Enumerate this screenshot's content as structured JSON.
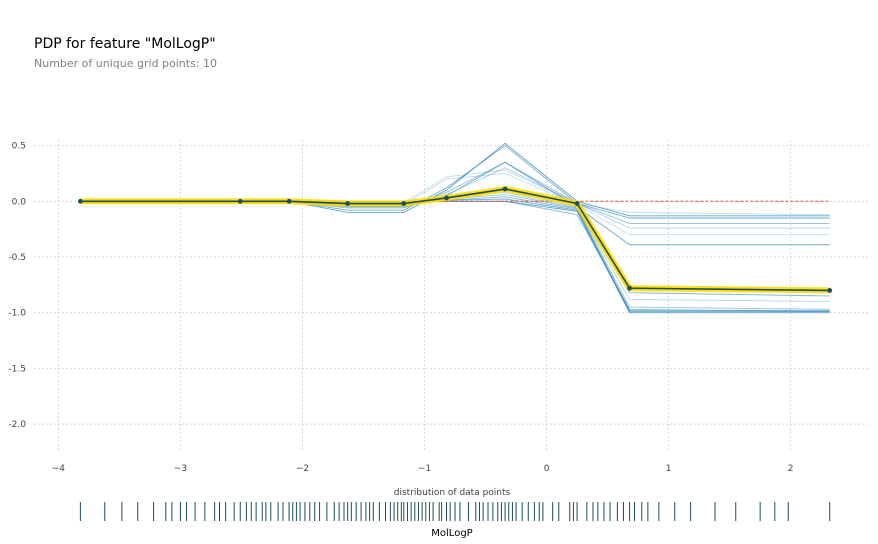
{
  "title": "PDP for feature \"MolLogP\"",
  "subtitle": "Number of unique grid points: 10",
  "colors": {
    "pdp_line": "#1A4E5D",
    "pdp_band": "#FEDC00",
    "ice_line": "#3288bd",
    "zero_line": "#e44a32",
    "grid": "#cccccc",
    "rug": "#1A4E5D"
  },
  "chart_data": {
    "type": "line",
    "title": "PDP for feature \"MolLogP\"",
    "subtitle": "Number of unique grid points: 10",
    "xlabel": "MolLogP",
    "rug_label": "distribution of data points",
    "xlim": [
      -4.2,
      2.65
    ],
    "ylim": [
      -2.25,
      0.55
    ],
    "xticks": [
      -4,
      -3,
      -2,
      -1,
      0,
      1,
      2
    ],
    "yticks": [
      0.5,
      0.0,
      -0.5,
      -1.0,
      -1.5,
      -2.0
    ],
    "ytick_labels": [
      "0.5",
      "0.0",
      "-0.5",
      "-1.0",
      "-1.5",
      "-2.0"
    ],
    "grid": true,
    "x": [
      -3.82,
      -2.51,
      -2.11,
      -1.63,
      -1.17,
      -0.82,
      -0.34,
      0.25,
      0.68,
      2.32
    ],
    "pdp": [
      0.0,
      0.0,
      0.0,
      -0.02,
      -0.02,
      0.03,
      0.11,
      -0.02,
      -0.78,
      -0.8
    ],
    "ice_lines": [
      [
        0,
        0,
        0,
        -0.1,
        -0.1,
        0.1,
        0.52,
        0.0,
        -0.13,
        -0.13
      ],
      [
        0,
        0,
        0,
        -0.08,
        -0.08,
        0.12,
        0.5,
        -0.02,
        -0.15,
        -0.15
      ],
      [
        0,
        0,
        0,
        -0.06,
        -0.06,
        0.08,
        0.35,
        -0.02,
        -0.2,
        -0.2
      ],
      [
        0,
        0,
        0,
        -0.04,
        -0.04,
        0.06,
        0.3,
        -0.02,
        -0.24,
        -0.24
      ],
      [
        0,
        0,
        0,
        -0.05,
        -0.05,
        0.05,
        0.35,
        -0.05,
        -0.39,
        -0.39
      ],
      [
        0,
        0,
        0,
        -0.03,
        -0.03,
        0.04,
        0.1,
        -0.05,
        -0.82,
        -0.85
      ],
      [
        0,
        0,
        0,
        -0.02,
        -0.02,
        0.02,
        0.06,
        -0.06,
        -0.95,
        -0.97
      ],
      [
        0,
        0,
        0,
        -0.01,
        -0.01,
        0.01,
        0.04,
        -0.07,
        -0.98,
        -0.98
      ],
      [
        0,
        0,
        0,
        -0.02,
        -0.02,
        0.01,
        0.02,
        -0.08,
        -0.99,
        -0.99
      ],
      [
        0,
        0,
        0,
        0.0,
        0.0,
        0.0,
        0.0,
        -0.09,
        -1.0,
        -1.0
      ],
      [
        0,
        0,
        0,
        -0.01,
        -0.01,
        0.03,
        0.08,
        -0.06,
        -0.88,
        -0.9
      ],
      [
        0,
        0,
        0,
        -0.03,
        -0.03,
        0.2,
        0.25,
        -0.03,
        -0.3,
        -0.3
      ],
      [
        0,
        0,
        0,
        -0.01,
        -0.01,
        0.22,
        0.28,
        -0.02,
        -0.1,
        -0.12
      ],
      [
        0,
        0,
        0,
        0.0,
        0.0,
        0.0,
        0.0,
        -0.12,
        -0.97,
        -0.99
      ]
    ],
    "rug_x": [
      -3.82,
      -3.62,
      -3.48,
      -3.35,
      -3.22,
      -3.12,
      -3.07,
      -3.0,
      -2.95,
      -2.88,
      -2.8,
      -2.72,
      -2.68,
      -2.63,
      -2.56,
      -2.51,
      -2.46,
      -2.42,
      -2.38,
      -2.33,
      -2.3,
      -2.26,
      -2.2,
      -2.16,
      -2.11,
      -2.08,
      -2.05,
      -2.02,
      -1.98,
      -1.94,
      -1.9,
      -1.86,
      -1.8,
      -1.74,
      -1.7,
      -1.66,
      -1.63,
      -1.6,
      -1.56,
      -1.52,
      -1.48,
      -1.45,
      -1.42,
      -1.37,
      -1.32,
      -1.28,
      -1.25,
      -1.22,
      -1.19,
      -1.17,
      -1.14,
      -1.11,
      -1.08,
      -1.05,
      -1.02,
      -0.99,
      -0.96,
      -0.93,
      -0.88,
      -0.86,
      -0.82,
      -0.79,
      -0.75,
      -0.71,
      -0.64,
      -0.58,
      -0.55,
      -0.52,
      -0.48,
      -0.44,
      -0.4,
      -0.37,
      -0.34,
      -0.31,
      -0.28,
      -0.25,
      -0.2,
      -0.15,
      -0.1,
      -0.06,
      -0.03,
      0.05,
      0.1,
      0.19,
      0.22,
      0.25,
      0.33,
      0.38,
      0.42,
      0.47,
      0.52,
      0.58,
      0.63,
      0.68,
      0.72,
      0.78,
      0.83,
      0.92,
      1.05,
      1.18,
      1.38,
      1.55,
      1.75,
      1.87,
      1.98,
      2.32
    ]
  }
}
